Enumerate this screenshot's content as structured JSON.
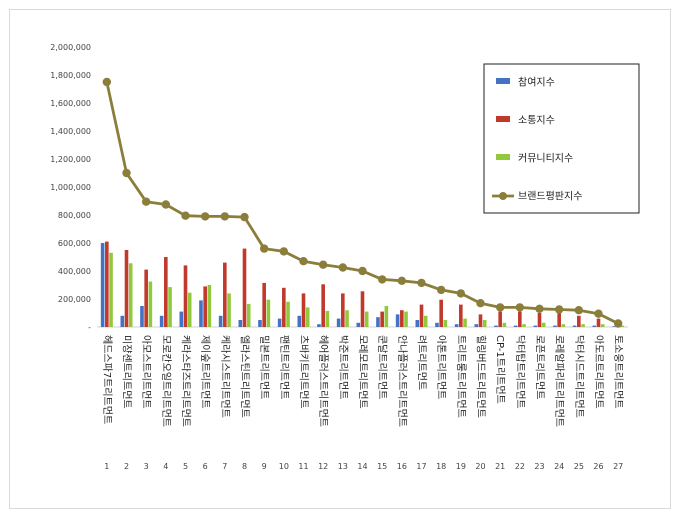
{
  "chart_data": {
    "type": "bar",
    "y_ticks": [
      "-",
      "200,000",
      "400,000",
      "600,000",
      "800,000",
      "1,000,000",
      "1,200,000",
      "1,400,000",
      "1,600,000",
      "1,800,000",
      "2,000,000"
    ],
    "ylim": [
      0,
      2000000
    ],
    "grid": false,
    "legend_position": "top-right",
    "categories": [
      {
        "rank": "1",
        "name": "헤드스파7트리트먼트"
      },
      {
        "rank": "2",
        "name": "미쟝센트리트먼트"
      },
      {
        "rank": "3",
        "name": "아모스트리트먼트"
      },
      {
        "rank": "4",
        "name": "모로칸오일트리트먼트"
      },
      {
        "rank": "5",
        "name": "케라스타즈트리트먼트"
      },
      {
        "rank": "6",
        "name": "제이숲트리트먼트"
      },
      {
        "rank": "7",
        "name": "케라시스트리트먼트"
      },
      {
        "rank": "8",
        "name": "엘라스틴트리트먼트"
      },
      {
        "rank": "9",
        "name": "밀본트리트먼트"
      },
      {
        "rank": "10",
        "name": "팬틴트리트먼트"
      },
      {
        "rank": "11",
        "name": "츠바키트리트먼트"
      },
      {
        "rank": "12",
        "name": "헤어플러스트리트먼트"
      },
      {
        "rank": "13",
        "name": "박준트리트먼트"
      },
      {
        "rank": "14",
        "name": "모레모트리트먼트"
      },
      {
        "rank": "15",
        "name": "쿤달트리트먼트"
      },
      {
        "rank": "16",
        "name": "안나플러스트리트먼트"
      },
      {
        "rank": "17",
        "name": "려트리트먼트"
      },
      {
        "rank": "18",
        "name": "아톤트리트먼트"
      },
      {
        "rank": "19",
        "name": "트리트룸트리트먼트"
      },
      {
        "rank": "20",
        "name": "힐링버드트리트먼트"
      },
      {
        "rank": "21",
        "name": "CP-1트리트먼트"
      },
      {
        "rank": "22",
        "name": "닥터탑트리트먼트"
      },
      {
        "rank": "23",
        "name": "로픈트리트먼트"
      },
      {
        "rank": "24",
        "name": "로레알파리트리트먼트"
      },
      {
        "rank": "25",
        "name": "닥터시드트리트먼트"
      },
      {
        "rank": "26",
        "name": "아도르트리트먼트"
      },
      {
        "rank": "27",
        "name": "토소웅트리트먼트"
      }
    ],
    "series": [
      {
        "name": "참여지수",
        "color": "#4472C4",
        "kind": "bar",
        "values": [
          600000,
          80000,
          150000,
          80000,
          110000,
          190000,
          80000,
          50000,
          50000,
          60000,
          80000,
          20000,
          60000,
          30000,
          70000,
          90000,
          50000,
          30000,
          20000,
          20000,
          10000,
          10000,
          10000,
          10000,
          10000,
          10000,
          5000
        ]
      },
      {
        "name": "소통지수",
        "color": "#C0392B",
        "kind": "bar",
        "values": [
          610000,
          550000,
          410000,
          500000,
          440000,
          290000,
          460000,
          560000,
          315000,
          280000,
          240000,
          305000,
          240000,
          255000,
          110000,
          120000,
          160000,
          195000,
          160000,
          90000,
          110000,
          110000,
          100000,
          100000,
          80000,
          60000,
          20000
        ]
      },
      {
        "name": "커뮤니티지수",
        "color": "#92C83E",
        "kind": "bar",
        "values": [
          530000,
          455000,
          325000,
          285000,
          245000,
          300000,
          240000,
          165000,
          195000,
          180000,
          140000,
          115000,
          120000,
          110000,
          150000,
          110000,
          80000,
          50000,
          60000,
          50000,
          30000,
          20000,
          30000,
          20000,
          20000,
          20000,
          10000
        ]
      },
      {
        "name": "브랜드평판지수",
        "color": "#8B7D3A",
        "kind": "line",
        "values": [
          1750000,
          1100000,
          895000,
          875000,
          795000,
          790000,
          790000,
          785000,
          560000,
          540000,
          470000,
          445000,
          425000,
          400000,
          340000,
          330000,
          315000,
          265000,
          240000,
          170000,
          140000,
          140000,
          130000,
          125000,
          120000,
          95000,
          25000
        ]
      }
    ]
  }
}
